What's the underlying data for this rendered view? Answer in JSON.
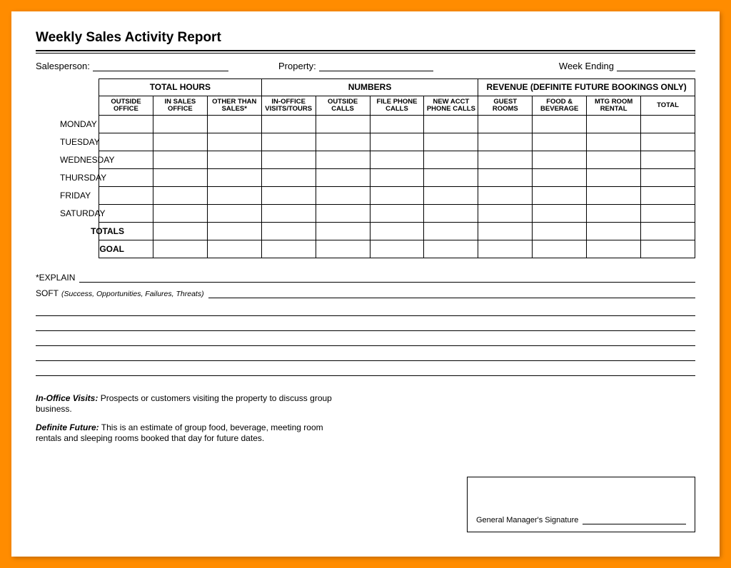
{
  "title": "Weekly Sales Activity Report",
  "info": {
    "salesperson_label": "Salesperson:",
    "property_label": "Property:",
    "week_ending_label": "Week Ending"
  },
  "table": {
    "groups": [
      {
        "label": "TOTAL HOURS",
        "span": 3
      },
      {
        "label": "NUMBERS",
        "span": 4
      },
      {
        "label": "REVENUE (DEFINITE FUTURE BOOKINGS ONLY)",
        "span": 4
      }
    ],
    "columns": [
      "OUTSIDE OFFICE",
      "IN SALES OFFICE",
      "OTHER THAN SALES*",
      "IN-OFFICE VISITS/TOURS",
      "OUTSIDE CALLS",
      "FILE PHONE CALLS",
      "NEW ACCT PHONE CALLS",
      "GUEST ROOMS",
      "FOOD & BEVERAGE",
      "MTG ROOM RENTAL",
      "TOTAL"
    ],
    "row_labels": [
      "MONDAY",
      "TUESDAY",
      "WEDNESDAY",
      "THURSDAY",
      "FRIDAY",
      "SATURDAY",
      "TOTALS",
      "GOAL"
    ],
    "row_label_bold": [
      false,
      false,
      false,
      false,
      false,
      false,
      true,
      true
    ],
    "row_count": 8,
    "col_count": 11,
    "header_row1_height": 26,
    "header_row2_height": 26,
    "body_row_height": 25
  },
  "notes": {
    "explain_label": "*EXPLAIN",
    "soft_label": "SOFT",
    "soft_hint": "(Success, Opportunities, Failures, Threats)",
    "blank_line_count": 5
  },
  "definitions": {
    "d1_key": "In-Office Visits:",
    "d1_text": " Prospects or customers visiting the property to discuss group business.",
    "d2_key": "Definite Future:",
    "d2_text": " This is an estimate of group food, beverage, meeting room rentals and sleeping rooms booked that day for future dates."
  },
  "signature": {
    "label": "General Manager's Signature"
  },
  "colors": {
    "frame": "#ff8c00",
    "paper": "#ffffff",
    "ink": "#000000"
  }
}
